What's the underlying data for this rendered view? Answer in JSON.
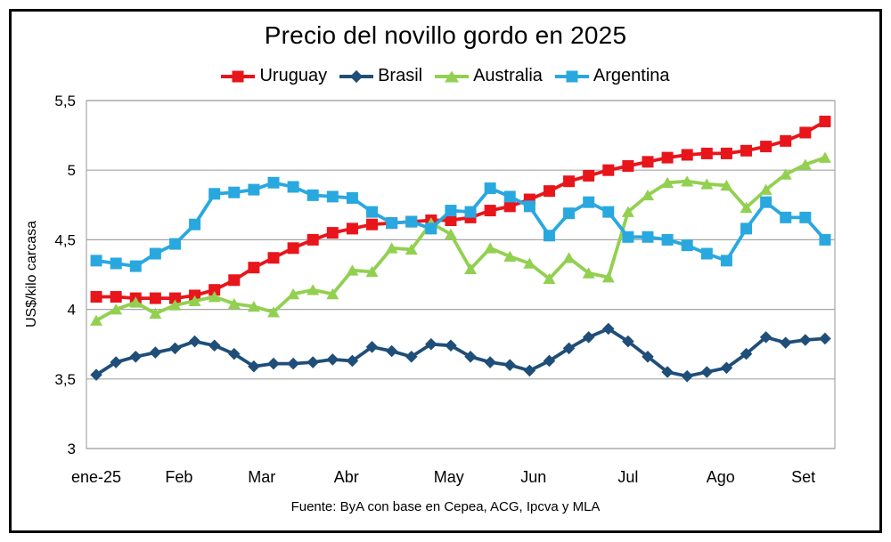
{
  "chart_data": {
    "type": "line",
    "title": "Precio del novillo gordo en 2025",
    "ylabel": "US$/kilo carcasa",
    "source": "Fuente: ByA con base en Cepea, ACG, Ipcva y MLA",
    "x_unit": "week",
    "x_count": 38,
    "ylim": [
      3.0,
      5.5
    ],
    "grid": true,
    "legend_position": "top",
    "y_ticks": [
      {
        "value": 5.5,
        "label": "5,5"
      },
      {
        "value": 5.0,
        "label": "5"
      },
      {
        "value": 4.5,
        "label": "4,5"
      },
      {
        "value": 4.0,
        "label": "4"
      },
      {
        "value": 3.5,
        "label": "3,5"
      },
      {
        "value": 3.0,
        "label": "3"
      }
    ],
    "months": [
      {
        "label": "ene-25",
        "week": 0
      },
      {
        "label": "Feb",
        "week": 4.2
      },
      {
        "label": "Mar",
        "week": 8.4
      },
      {
        "label": "Abr",
        "week": 12.7
      },
      {
        "label": "May",
        "week": 17.9
      },
      {
        "label": "Jun",
        "week": 22.2
      },
      {
        "label": "Jul",
        "week": 27.0
      },
      {
        "label": "Ago",
        "week": 31.7
      },
      {
        "label": "Set",
        "week": 35.9
      }
    ],
    "series": [
      {
        "name": "Uruguay",
        "color": "#E8151B",
        "marker": "square",
        "values": [
          4.09,
          4.09,
          4.08,
          4.08,
          4.08,
          4.1,
          4.14,
          4.21,
          4.3,
          4.37,
          4.44,
          4.5,
          4.55,
          4.58,
          4.61,
          4.62,
          4.63,
          4.64,
          4.64,
          4.66,
          4.71,
          4.74,
          4.79,
          4.85,
          4.92,
          4.96,
          5.0,
          5.03,
          5.06,
          5.09,
          5.11,
          5.12,
          5.12,
          5.14,
          5.17,
          5.21,
          5.27,
          5.35
        ]
      },
      {
        "name": "Brasil",
        "color": "#1F4E79",
        "marker": "diamond",
        "values": [
          3.53,
          3.62,
          3.66,
          3.69,
          3.72,
          3.77,
          3.74,
          3.68,
          3.59,
          3.61,
          3.61,
          3.62,
          3.64,
          3.63,
          3.73,
          3.7,
          3.66,
          3.75,
          3.74,
          3.66,
          3.62,
          3.6,
          3.56,
          3.63,
          3.72,
          3.8,
          3.86,
          3.77,
          3.66,
          3.55,
          3.52,
          3.55,
          3.58,
          3.68,
          3.8,
          3.76,
          3.78,
          3.79
        ]
      },
      {
        "name": "Australia",
        "color": "#92D050",
        "marker": "triangle",
        "values": [
          3.92,
          4.0,
          4.05,
          3.97,
          4.03,
          4.06,
          4.09,
          4.04,
          4.02,
          3.98,
          4.11,
          4.14,
          4.11,
          4.28,
          4.27,
          4.44,
          4.43,
          4.62,
          4.54,
          4.29,
          4.44,
          4.38,
          4.33,
          4.22,
          4.37,
          4.26,
          4.23,
          4.7,
          4.82,
          4.91,
          4.92,
          4.9,
          4.89,
          4.73,
          4.86,
          4.97,
          5.04,
          5.09
        ]
      },
      {
        "name": "Argentina",
        "color": "#29A8E0",
        "marker": "square",
        "values": [
          4.35,
          4.33,
          4.31,
          4.4,
          4.47,
          4.61,
          4.83,
          4.84,
          4.86,
          4.91,
          4.88,
          4.82,
          4.81,
          4.8,
          4.7,
          4.62,
          4.63,
          4.58,
          4.71,
          4.7,
          4.87,
          4.81,
          4.74,
          4.53,
          4.69,
          4.77,
          4.7,
          4.52,
          4.52,
          4.5,
          4.46,
          4.4,
          4.35,
          4.58,
          4.77,
          4.66,
          4.66,
          4.5
        ]
      }
    ],
    "style": {
      "gridline_color": "#A6A6A6",
      "plot_border_color": "#A6A6A6",
      "frame_color": "#000000",
      "background": "#FFFFFF"
    }
  }
}
